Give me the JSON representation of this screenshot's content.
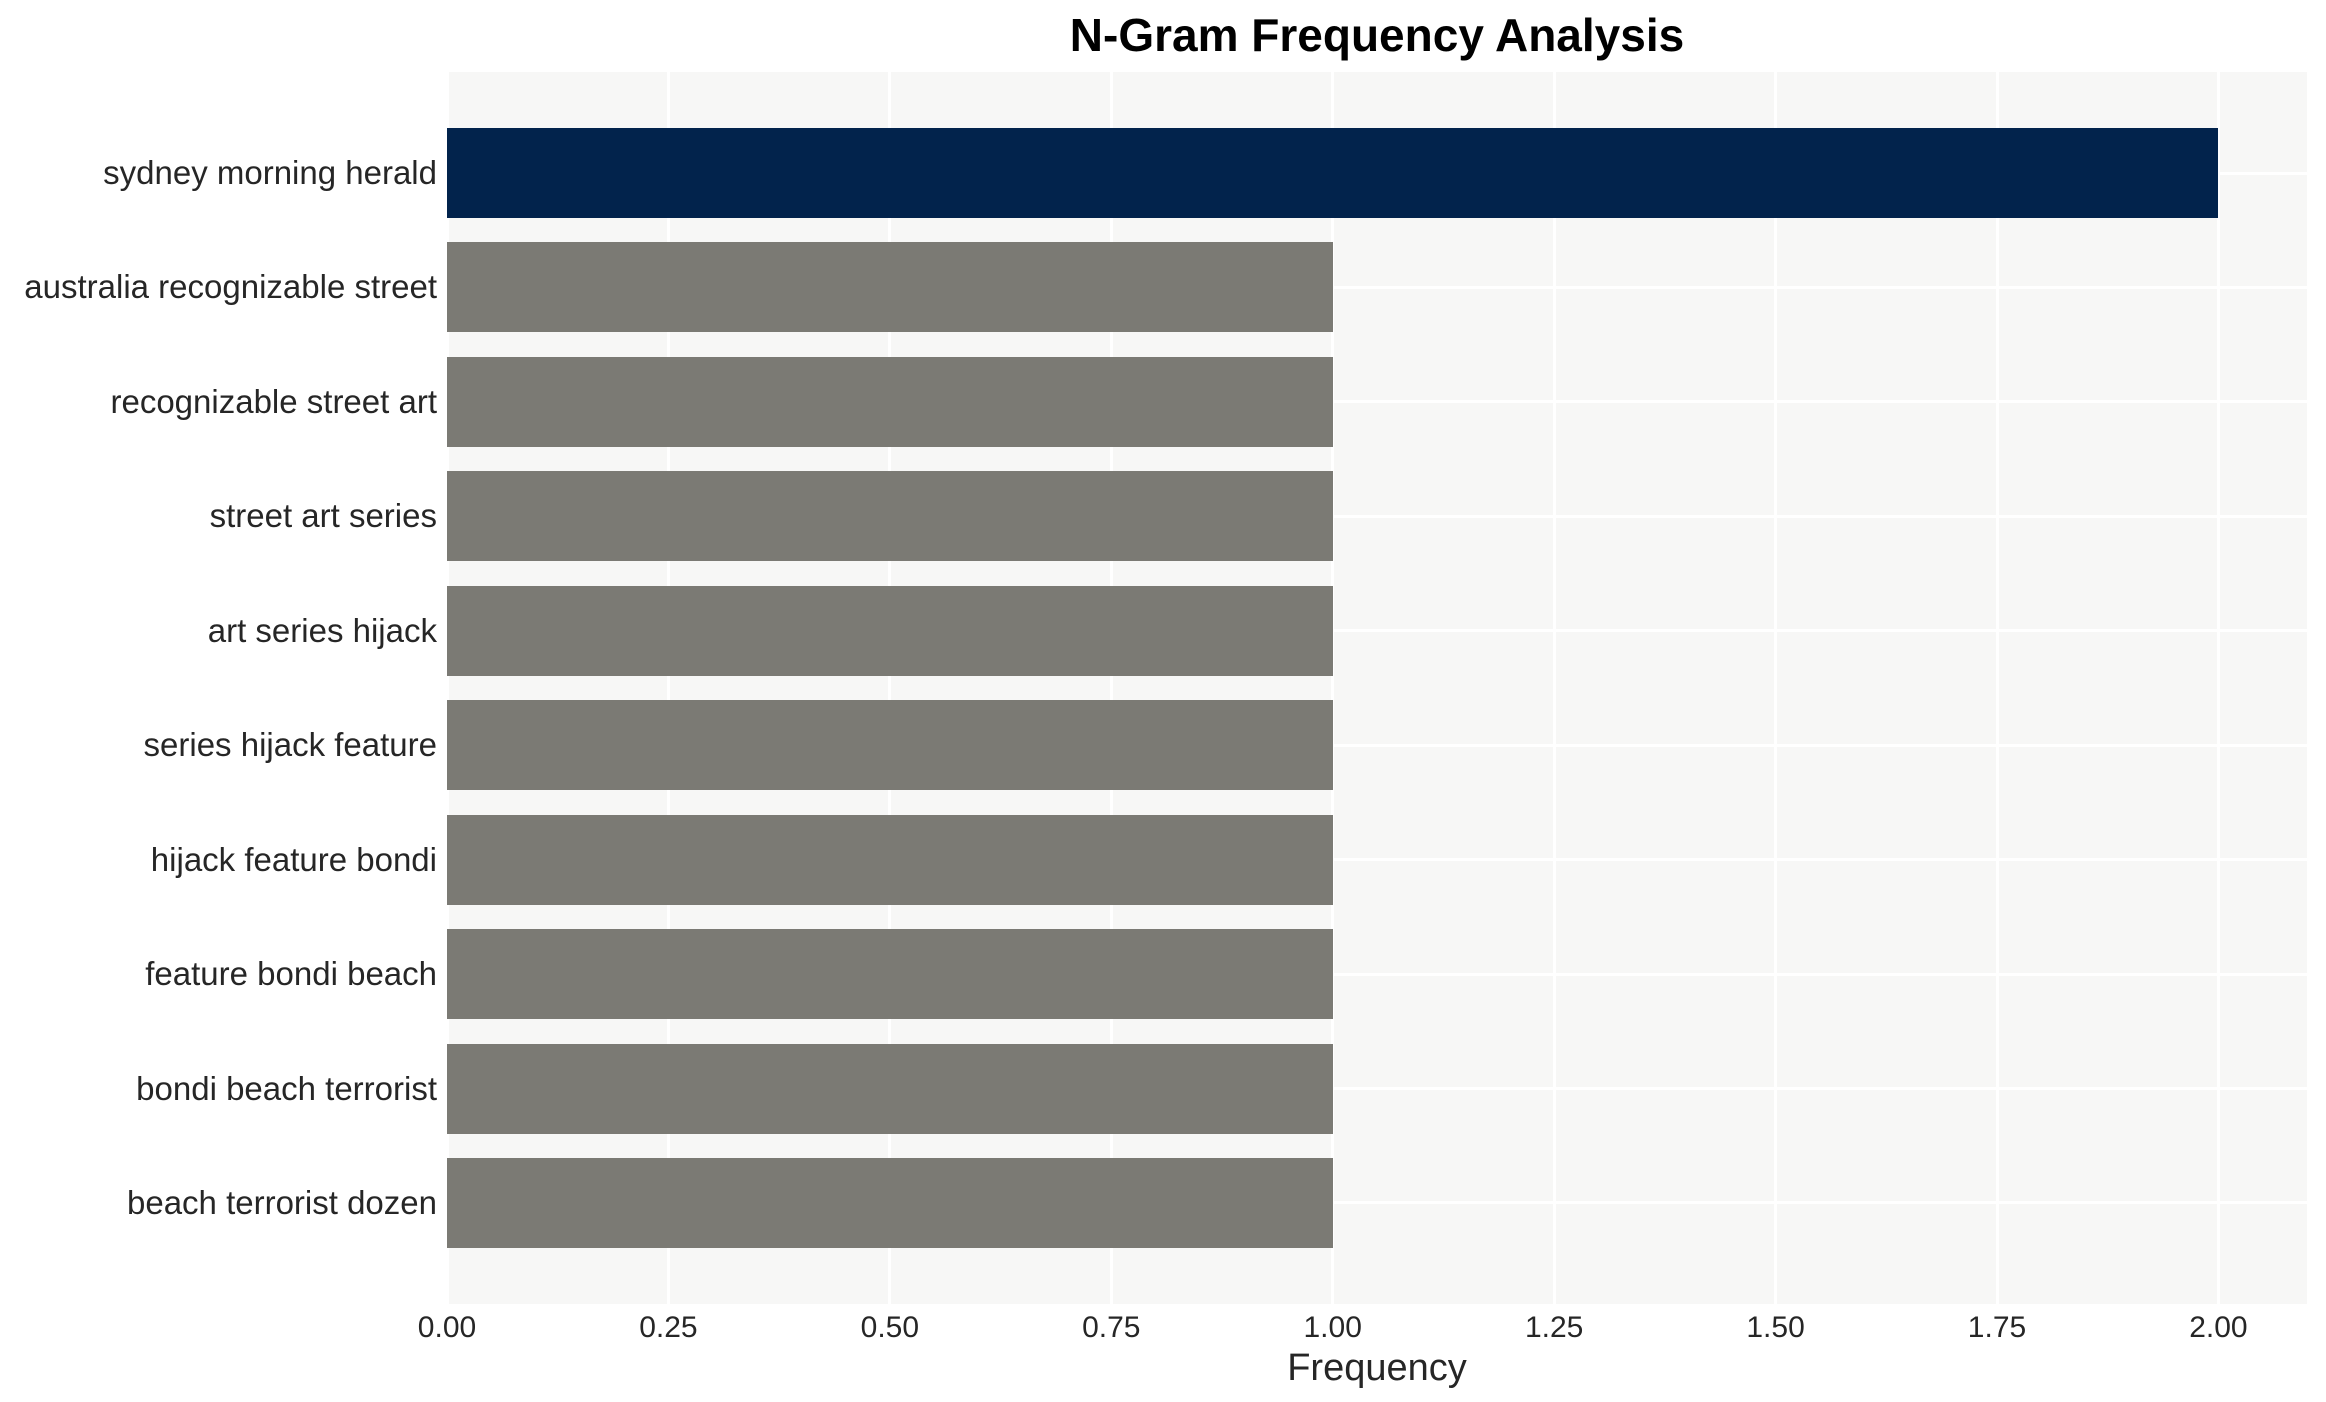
{
  "chart_data": {
    "type": "bar",
    "orientation": "horizontal",
    "title": "N-Gram Frequency Analysis",
    "xlabel": "Frequency",
    "ylabel": "",
    "categories": [
      "sydney morning herald",
      "australia recognizable street",
      "recognizable street art",
      "street art series",
      "art series hijack",
      "series hijack feature",
      "hijack feature bondi",
      "feature bondi beach",
      "bondi beach terrorist",
      "beach terrorist dozen"
    ],
    "values": [
      2,
      1,
      1,
      1,
      1,
      1,
      1,
      1,
      1,
      1
    ],
    "bar_colors": [
      "#02234c",
      "#7b7a74",
      "#7b7a74",
      "#7b7a74",
      "#7b7a74",
      "#7b7a74",
      "#7b7a74",
      "#7b7a74",
      "#7b7a74",
      "#7b7a74"
    ],
    "xlim": [
      0,
      2.1
    ],
    "xticks": [
      0,
      0.25,
      0.5,
      0.75,
      1.0,
      1.25,
      1.5,
      1.75,
      2.0
    ],
    "xtick_labels": [
      "0.00",
      "0.25",
      "0.50",
      "0.75",
      "1.00",
      "1.25",
      "1.50",
      "1.75",
      "2.00"
    ],
    "grid": true,
    "legend": null,
    "colors": {
      "highlight_bar": "#02234c",
      "default_bar": "#7b7a74",
      "plot_bg": "#f7f7f6",
      "grid_line": "#ffffff",
      "tick_text": "#262626",
      "title_text": "#000000",
      "page_bg": "#ffffff"
    }
  }
}
